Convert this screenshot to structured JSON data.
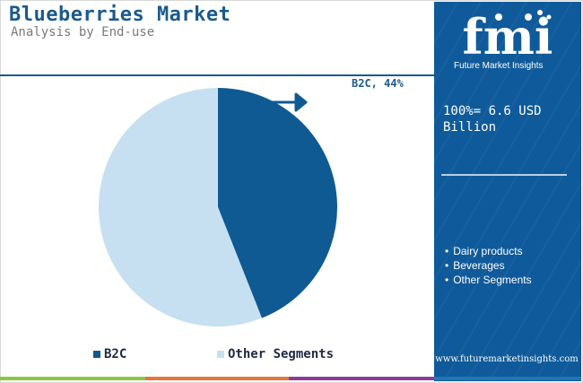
{
  "title": "Blueberries Market",
  "subtitle": "Analysis by End-use",
  "colors": {
    "b2c": "#0f5a92",
    "other": "#c6e0f2",
    "panel": "#0f5a9a",
    "title": "#1b5a8c",
    "stripe_green": "#8dc63f",
    "stripe_orange": "#e8743b",
    "stripe_purple": "#8e3b97",
    "stripe_blue": "#1f77b4"
  },
  "chart_data": {
    "type": "pie",
    "series": [
      {
        "name": "B2C",
        "value": 44
      },
      {
        "name": "Other Segments",
        "value": 56
      }
    ],
    "callout": "B2C, 44%",
    "legend": [
      "B2C",
      "Other Segments"
    ],
    "legend_position": "bottom"
  },
  "sidebar": {
    "logo_text": "fmi",
    "logo_subtitle": "Future Market Insights",
    "total_label": "100%= 6.6 USD Billion",
    "segments": [
      "Dairy products",
      "Beverages",
      "Other Segments"
    ],
    "url": "www.futuremarketinsights.com"
  }
}
